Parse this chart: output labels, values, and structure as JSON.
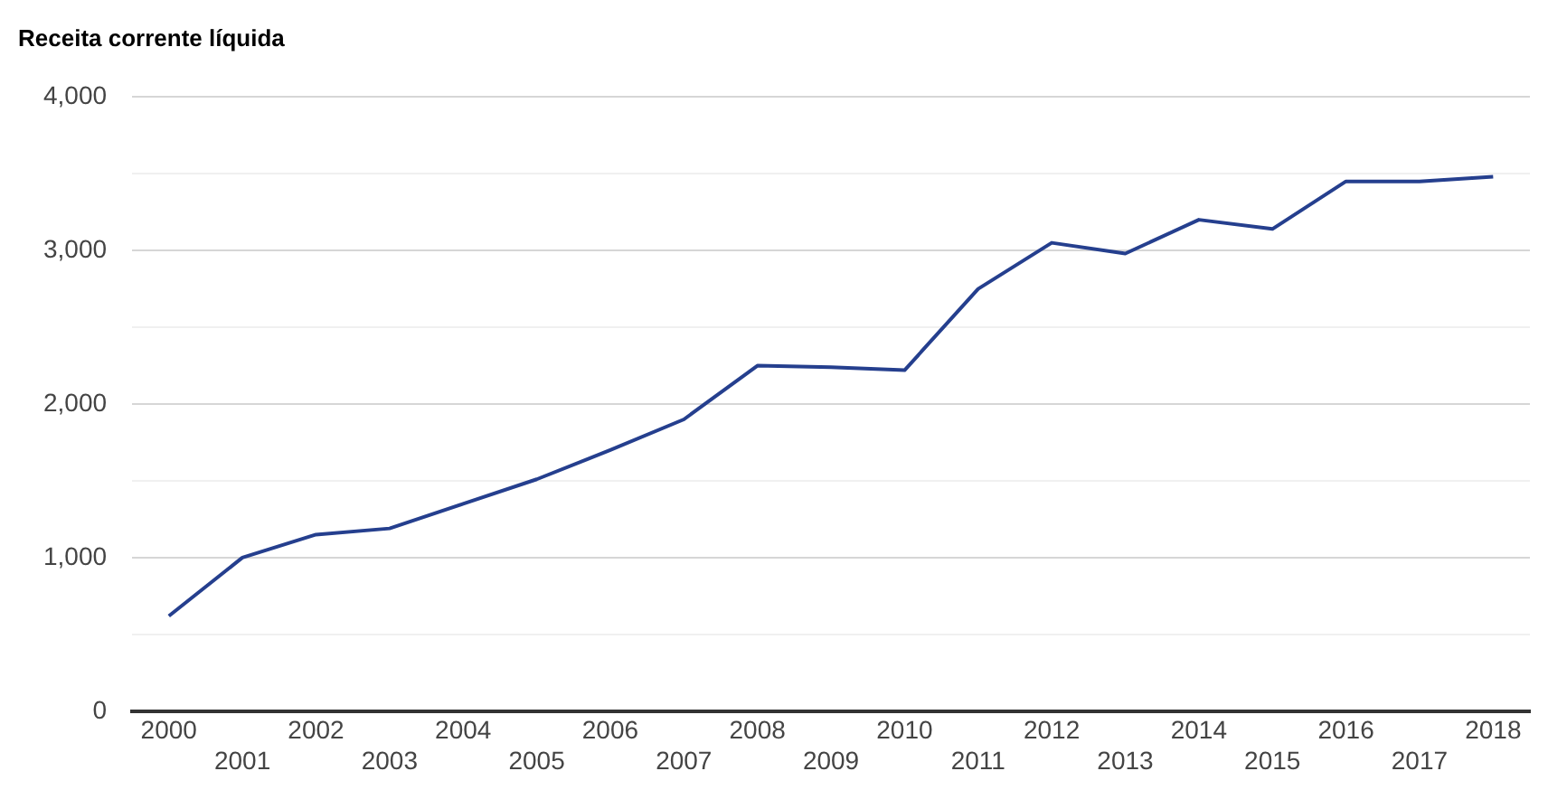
{
  "chart_data": {
    "type": "line",
    "title": "Receita corrente líquida",
    "categories": [
      "2000",
      "2001",
      "2002",
      "2003",
      "2004",
      "2005",
      "2006",
      "2007",
      "2008",
      "2009",
      "2010",
      "2011",
      "2012",
      "2013",
      "2014",
      "2015",
      "2016",
      "2017",
      "2018"
    ],
    "series": [
      {
        "color": "#253f8e",
        "values": [
          620,
          1000,
          1150,
          1190,
          1350,
          1510,
          1700,
          1900,
          2250,
          2240,
          2220,
          2750,
          3050,
          2980,
          3200,
          3140,
          3450,
          3450,
          3480
        ]
      }
    ],
    "ylim": [
      0,
      4000
    ],
    "yticks": [
      0,
      {
        "value": 500,
        "label": null
      },
      {
        "value": 1000,
        "label": "1,000"
      },
      {
        "value": 1500,
        "label": null
      },
      {
        "value": 2000,
        "label": "2,000"
      },
      {
        "value": 2500,
        "label": null
      },
      {
        "value": 3000,
        "label": "3,000"
      },
      {
        "value": 3500,
        "label": null
      },
      {
        "value": 4000,
        "label": "4,000"
      }
    ],
    "grid": "y",
    "legend": false,
    "marker": "none",
    "line_style": "solid"
  }
}
